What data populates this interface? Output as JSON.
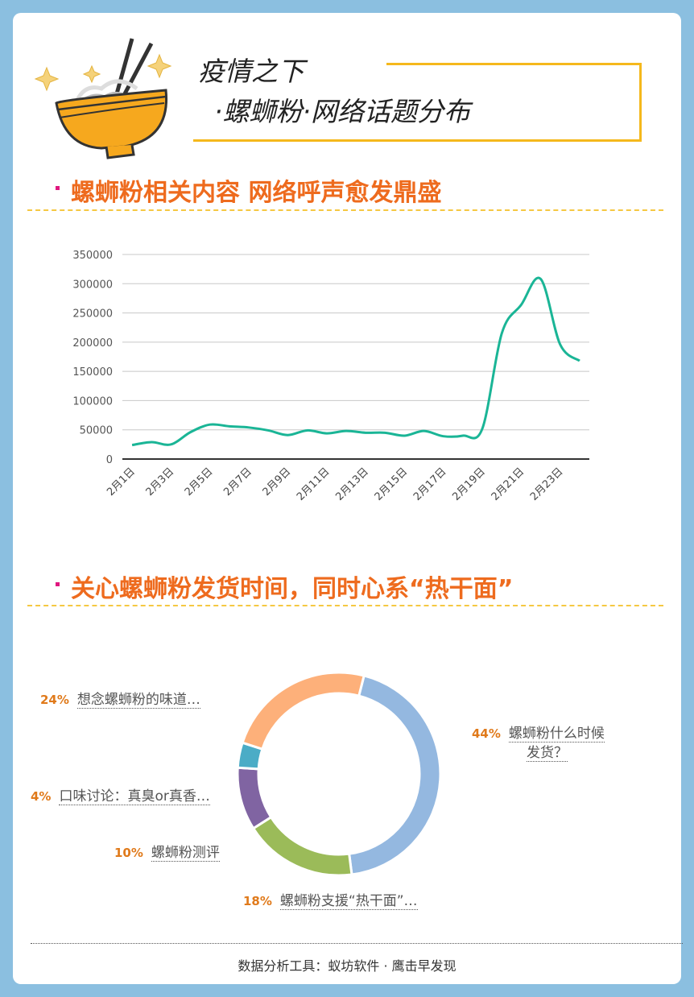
{
  "header": {
    "title_line1": "疫情之下",
    "title_line2": "·螺蛳粉·网络话题分布"
  },
  "sections": [
    {
      "heading": "螺蛳粉相关内容 网络呼声愈发鼎盛"
    },
    {
      "heading": "关心螺蛳粉发货时间，同时心系“热干面”"
    }
  ],
  "colors": {
    "accent": "#ee6b1e",
    "frame": "#f5b81c",
    "border": "#8bbfe0",
    "line": "#1ab596",
    "bullet": "#e0177f"
  },
  "footer": {
    "text": "数据分析工具：蚁坊软件 · 鹰击早发现"
  },
  "chart_data": [
    {
      "type": "line",
      "yticks": [
        "350000",
        "300000",
        "250000",
        "200000",
        "150000",
        "100000",
        "50000",
        "0"
      ],
      "ylim": [
        0,
        350000
      ],
      "grid": true,
      "x": [
        "2月1日",
        "2月2日",
        "2月3日",
        "2月4日",
        "2月5日",
        "2月6日",
        "2月7日",
        "2月8日",
        "2月9日",
        "2月10日",
        "2月11日",
        "2月12日",
        "2月13日",
        "2月14日",
        "2月15日",
        "2月16日",
        "2月17日",
        "2月18日",
        "2月19日",
        "2月20日",
        "2月21日",
        "2月22日",
        "2月23日",
        "2月24日"
      ],
      "xtick_labels": [
        "2月1日",
        "2月3日",
        "2月5日",
        "2月7日",
        "2月9日",
        "2月11日",
        "2月13日",
        "2月15日",
        "2月17日",
        "2月19日",
        "2月21日",
        "2月23日"
      ],
      "series": [
        {
          "values": [
            24000,
            29000,
            25000,
            46000,
            59000,
            56000,
            54000,
            49000,
            41000,
            49000,
            44000,
            48000,
            45000,
            45000,
            40000,
            48000,
            39000,
            40000,
            52000,
            215000,
            264000,
            308000,
            196000,
            168000
          ]
        }
      ]
    },
    {
      "type": "pie",
      "donut": true,
      "slices": [
        {
          "label": "螺蛳粉什么时候发货？",
          "label_lines": [
            "螺蛳粉什么时候",
            "发货？"
          ],
          "pct_text": "44%",
          "value": 44,
          "color": "#94b8e0"
        },
        {
          "label": "螺蛳粉支援“热干面”…",
          "pct_text": "18%",
          "value": 18,
          "color": "#9bbb59"
        },
        {
          "label": "螺蛳粉测评",
          "pct_text": "10%",
          "value": 10,
          "color": "#8064a2"
        },
        {
          "label": "口味讨论：真臭or真香…",
          "pct_text": "4%",
          "value": 4,
          "color": "#4bacc6"
        },
        {
          "label": "想念螺蛳粉的味道…",
          "pct_text": "24%",
          "value": 24,
          "color": "#fdb07a"
        }
      ]
    }
  ]
}
